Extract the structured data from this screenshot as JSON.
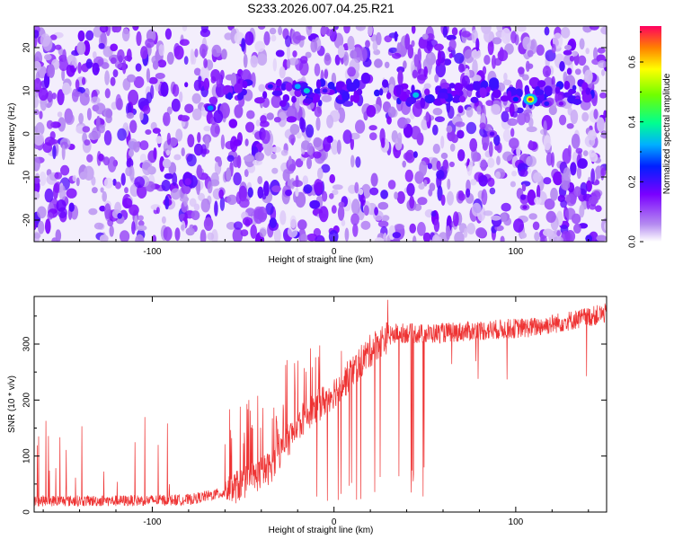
{
  "title": "S233.2026.007.04.25.R21",
  "chart_data": [
    {
      "type": "heatmap",
      "xlabel": "Height of straight line (km)",
      "ylabel": "Frequency (Hz)",
      "xlim": [
        -165,
        150
      ],
      "ylim": [
        -25,
        25
      ],
      "xticks": [
        -100,
        0,
        100
      ],
      "yticks": [
        -20,
        -10,
        0,
        10,
        20
      ],
      "colorbar": {
        "label": "Normalized spectral amplitude",
        "range": [
          0.0,
          0.72
        ],
        "ticks": [
          0.0,
          0.2,
          0.4,
          0.6
        ]
      },
      "ridge": {
        "description": "Bright signal line around 8-12 Hz",
        "points": [
          {
            "x": -68,
            "y": 6,
            "v": 0.3
          },
          {
            "x": -35,
            "y": 11,
            "v": 0.22
          },
          {
            "x": -20,
            "y": 11,
            "v": 0.32
          },
          {
            "x": -15,
            "y": 10,
            "v": 0.35
          },
          {
            "x": -5,
            "y": 10,
            "v": 0.2
          },
          {
            "x": 45,
            "y": 9,
            "v": 0.34
          },
          {
            "x": 100,
            "y": 8,
            "v": 0.25
          },
          {
            "x": 108,
            "y": 8,
            "v": 0.55
          },
          {
            "x": 117,
            "y": 7,
            "v": 0.22
          },
          {
            "x": 125,
            "y": 7,
            "v": 0.15
          },
          {
            "x": 105,
            "y": -17,
            "v": 0.15
          },
          {
            "x": 87,
            "y": 0,
            "v": 0.18
          }
        ]
      }
    },
    {
      "type": "line",
      "xlabel": "Height of straight line (km)",
      "ylabel": "SNR (10 * v/v)",
      "xlim": [
        -165,
        150
      ],
      "ylim": [
        0,
        385
      ],
      "xticks": [
        -100,
        0,
        100
      ],
      "yticks": [
        0,
        100,
        200,
        300
      ],
      "color": "#ee3333",
      "series": [
        {
          "name": "SNR",
          "trend_x": [
            -165,
            -120,
            -80,
            -60,
            -45,
            -35,
            -25,
            -15,
            -5,
            5,
            15,
            25,
            35,
            50,
            70,
            90,
            110,
            130,
            150
          ],
          "trend_y": [
            20,
            20,
            22,
            35,
            60,
            80,
            130,
            175,
            200,
            230,
            270,
            305,
            320,
            318,
            322,
            326,
            330,
            342,
            355
          ]
        }
      ]
    }
  ]
}
